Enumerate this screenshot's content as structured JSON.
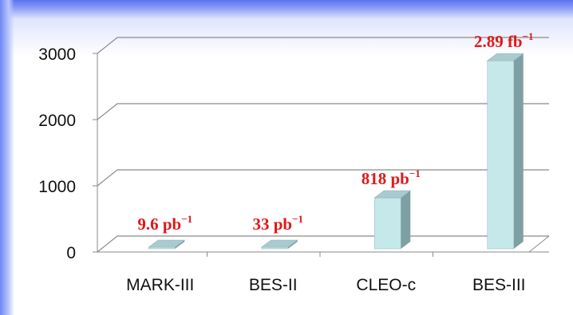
{
  "chart_data": {
    "type": "bar",
    "categories": [
      "MARK-III",
      "BES-II",
      "CLEO-c",
      "BES-III"
    ],
    "values": [
      9.6,
      33,
      818,
      2890
    ],
    "data_labels": [
      {
        "main": "9.6 pb",
        "sup": "−1"
      },
      {
        "main": "33 pb",
        "sup": "−1"
      },
      {
        "main": "818 pb",
        "sup": "−1"
      },
      {
        "main": "2.89 fb",
        "sup": "−1"
      }
    ],
    "y_ticks": [
      "0",
      "1000",
      "2000",
      "3000"
    ],
    "y_tick_values": [
      0,
      1000,
      2000,
      3000
    ],
    "ylim": [
      0,
      3000
    ],
    "grid": true,
    "style": "3d-column",
    "colors": {
      "bar_front": "#c5e8ea",
      "bar_side": "#7e9fa4",
      "bar_top": "#a9cbcf",
      "label": "#e01818",
      "grid": "#8a8a8a"
    }
  }
}
